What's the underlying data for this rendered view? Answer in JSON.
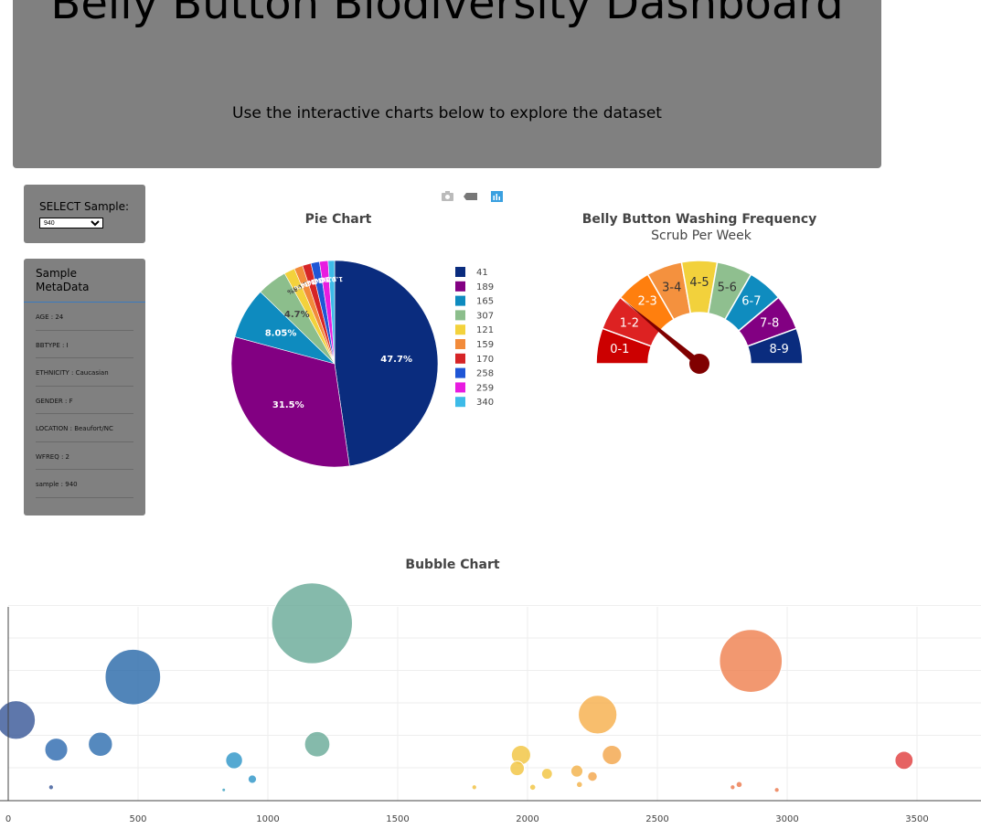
{
  "header": {
    "title": "Belly Button Biodiversity Dashboard",
    "subtitle": "Use the interactive charts below to explore the dataset"
  },
  "select": {
    "label": "SELECT Sample:",
    "value": "940"
  },
  "metadata": {
    "title": "Sample MetaData",
    "items": [
      "AGE : 24",
      "BBTYPE : I",
      "ETHNICITY : Caucasian",
      "GENDER : F",
      "LOCATION : Beaufort/NC",
      "WFREQ : 2",
      "sample : 940"
    ]
  },
  "modebar": {
    "icons": [
      "camera-icon",
      "tag-icon",
      "plotly-logo-icon"
    ]
  },
  "chart_data": [
    {
      "type": "pie",
      "title": "Pie Chart",
      "labels": [
        "41",
        "189",
        "165",
        "307",
        "121",
        "159",
        "170",
        "258",
        "259",
        "340"
      ],
      "values": [
        47.7,
        31.5,
        8.05,
        4.7,
        1.68,
        1.34,
        1.34,
        1.34,
        1.34,
        1.01
      ],
      "slice_labels": [
        "47.7%",
        "31.5%",
        "8.05%",
        "4.7%",
        "1.68%",
        "1.34%",
        "1.34%",
        "1.34%",
        "1.34%",
        "1.01%"
      ],
      "colors": [
        "#0a2c7e",
        "#820082",
        "#0e8bbf",
        "#8cbe8c",
        "#f3d23c",
        "#f28b3a",
        "#d62426",
        "#1f56d6",
        "#e81ce0",
        "#3dbbe8"
      ],
      "legend": "right"
    },
    {
      "type": "gauge",
      "title": "Belly Button Washing Frequency",
      "subtitle": "Scrub Per Week",
      "segments": [
        "0-1",
        "1-2",
        "2-3",
        "3-4",
        "4-5",
        "5-6",
        "6-7",
        "7-8",
        "8-9"
      ],
      "segment_colors": [
        "#cc0000",
        "#dd2222",
        "#ff7f0e",
        "#f4913e",
        "#f2d13c",
        "#8fbf8f",
        "#0f8cbf",
        "#820082",
        "#0a2c7e"
      ],
      "value": 2,
      "range": [
        0,
        9
      ],
      "needle_color": "#800000"
    },
    {
      "type": "scatter",
      "title": "Bubble Chart",
      "xlim": [
        -30,
        3720
      ],
      "xticks": [
        0,
        500,
        1000,
        1500,
        2000,
        2500,
        3000,
        3500
      ],
      "points": [
        {
          "x": 30,
          "y": 30,
          "size": 32,
          "color": "#3b5998"
        },
        {
          "x": 185,
          "y": 19,
          "size": 19,
          "color": "#2f6bb0"
        },
        {
          "x": 355,
          "y": 21,
          "size": 20,
          "color": "#2f6fb0"
        },
        {
          "x": 480,
          "y": 46,
          "size": 46,
          "color": "#2b6aaa"
        },
        {
          "x": 165,
          "y": 5,
          "size": 4,
          "color": "#3b5998"
        },
        {
          "x": 870,
          "y": 15,
          "size": 14,
          "color": "#2f96c8"
        },
        {
          "x": 940,
          "y": 8,
          "size": 7,
          "color": "#2f96c8"
        },
        {
          "x": 830,
          "y": 4,
          "size": 3,
          "color": "#3aa0c0"
        },
        {
          "x": 1170,
          "y": 66,
          "size": 67,
          "color": "#6aab98"
        },
        {
          "x": 1190,
          "y": 21,
          "size": 21,
          "color": "#6aab98"
        },
        {
          "x": 1795,
          "y": 5,
          "size": 4,
          "color": "#f0c040"
        },
        {
          "x": 1975,
          "y": 17,
          "size": 16,
          "color": "#f2c441"
        },
        {
          "x": 1960,
          "y": 12,
          "size": 12,
          "color": "#f2c441"
        },
        {
          "x": 2075,
          "y": 10,
          "size": 9,
          "color": "#f2c441"
        },
        {
          "x": 2190,
          "y": 11,
          "size": 10,
          "color": "#f3b24a"
        },
        {
          "x": 2270,
          "y": 32,
          "size": 32,
          "color": "#f6b04d"
        },
        {
          "x": 2325,
          "y": 17,
          "size": 16,
          "color": "#f3a64c"
        },
        {
          "x": 2250,
          "y": 9,
          "size": 8,
          "color": "#f3a64c"
        },
        {
          "x": 2020,
          "y": 5,
          "size": 5,
          "color": "#f2c441"
        },
        {
          "x": 2200,
          "y": 6,
          "size": 5,
          "color": "#f3b24a"
        },
        {
          "x": 2860,
          "y": 52,
          "size": 52,
          "color": "#ef8150"
        },
        {
          "x": 2790,
          "y": 5,
          "size": 4,
          "color": "#ec7a4e"
        },
        {
          "x": 2815,
          "y": 6,
          "size": 5,
          "color": "#ec7a4e"
        },
        {
          "x": 2960,
          "y": 4,
          "size": 4,
          "color": "#ec7a4e"
        },
        {
          "x": 3450,
          "y": 15,
          "size": 15,
          "color": "#e04040"
        }
      ]
    }
  ]
}
